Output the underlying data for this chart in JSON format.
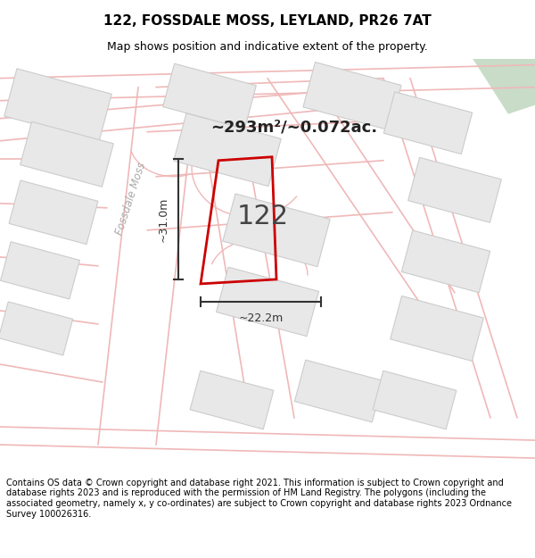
{
  "title": "122, FOSSDALE MOSS, LEYLAND, PR26 7AT",
  "subtitle": "Map shows position and indicative extent of the property.",
  "area_text": "~293m²/~0.072ac.",
  "label_122": "122",
  "dim_horizontal": "~22.2m",
  "dim_vertical": "~31.0m",
  "road_label": "Fossdale Moss",
  "footer": "Contains OS data © Crown copyright and database right 2021. This information is subject to Crown copyright and database rights 2023 and is reproduced with the permission of HM Land Registry. The polygons (including the associated geometry, namely x, y co-ordinates) are subject to Crown copyright and database rights 2023 Ordnance Survey 100026316.",
  "bg_color": "#ffffff",
  "map_bg": "#ffffff",
  "road_line_color": "#f0b8b8",
  "plot_fill": "none",
  "plot_edge": "#cc0000",
  "building_fill": "#e8e8e8",
  "building_edge": "#cccccc",
  "green_fill": "#c8dcc8",
  "title_fontsize": 11,
  "subtitle_fontsize": 9,
  "footer_fontsize": 7,
  "road_label_color": "#aaaaaa",
  "dim_color": "#333333"
}
